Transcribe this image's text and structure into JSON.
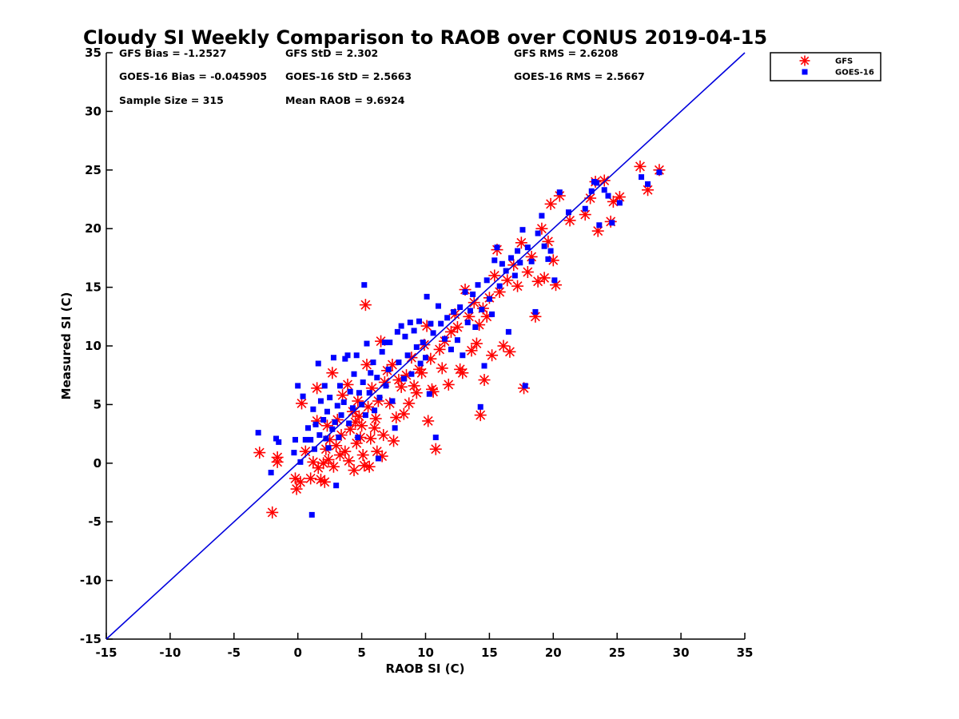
{
  "chart_data": {
    "type": "scatter",
    "title": "Cloudy SI Weekly Comparison to RAOB over CONUS 2019-04-15",
    "xlabel": "RAOB SI (C)",
    "ylabel": "Measured SI (C)",
    "xlim": [
      -15,
      35
    ],
    "ylim": [
      -15,
      35
    ],
    "xticks": [
      "-15",
      "-10",
      "-5",
      "0",
      "5",
      "10",
      "15",
      "20",
      "25",
      "30",
      "35"
    ],
    "yticks": [
      "-15",
      "-10",
      "-5",
      "0",
      "5",
      "10",
      "15",
      "20",
      "25",
      "30",
      "35"
    ],
    "grid": false,
    "legend_position": "outside top-right",
    "stats": [
      {
        "text": "GFS Bias = -1.2527",
        "col": 0,
        "row": 0
      },
      {
        "text": "GFS StD = 2.302",
        "col": 1,
        "row": 0
      },
      {
        "text": "GFS RMS = 2.6208",
        "col": 2,
        "row": 0
      },
      {
        "text": "GOES-16 Bias = -0.045905",
        "col": 0,
        "row": 1
      },
      {
        "text": "GOES-16 StD = 2.5663",
        "col": 1,
        "row": 1
      },
      {
        "text": "GOES-16 RMS = 2.5667",
        "col": 2,
        "row": 1
      },
      {
        "text": "Sample Size = 315",
        "col": 0,
        "row": 2
      },
      {
        "text": "Mean RAOB = 9.6924",
        "col": 1,
        "row": 2
      }
    ],
    "reference_line": {
      "x": [
        -15,
        35
      ],
      "y": [
        -15,
        35
      ],
      "color": "#0000dd"
    },
    "series": [
      {
        "name": "GFS",
        "marker": "asterisk",
        "color": "#ff0000",
        "points": [
          [
            -3.0,
            0.9
          ],
          [
            -2.0,
            -4.2
          ],
          [
            -1.6,
            0.5
          ],
          [
            -1.6,
            0.1
          ],
          [
            -0.2,
            -1.3
          ],
          [
            -0.1,
            -2.2
          ],
          [
            0.2,
            -1.6
          ],
          [
            0.3,
            5.1
          ],
          [
            0.6,
            1.0
          ],
          [
            1.0,
            -1.3
          ],
          [
            1.2,
            0.1
          ],
          [
            1.5,
            3.6
          ],
          [
            1.5,
            6.4
          ],
          [
            1.6,
            -0.4
          ],
          [
            1.8,
            -1.4
          ],
          [
            2.0,
            0.0
          ],
          [
            2.1,
            -1.6
          ],
          [
            2.2,
            1.2
          ],
          [
            2.3,
            3.2
          ],
          [
            2.4,
            0.3
          ],
          [
            2.5,
            2.0
          ],
          [
            2.7,
            7.7
          ],
          [
            2.8,
            -0.3
          ],
          [
            3.0,
            1.5
          ],
          [
            3.1,
            3.7
          ],
          [
            3.3,
            0.7
          ],
          [
            3.4,
            2.4
          ],
          [
            3.5,
            5.8
          ],
          [
            3.7,
            1.0
          ],
          [
            3.9,
            6.7
          ],
          [
            4.0,
            0.2
          ],
          [
            4.1,
            2.9
          ],
          [
            4.3,
            4.4
          ],
          [
            4.4,
            -0.6
          ],
          [
            4.5,
            3.5
          ],
          [
            4.6,
            1.7
          ],
          [
            4.7,
            5.3
          ],
          [
            4.8,
            4.0
          ],
          [
            4.9,
            2.2
          ],
          [
            5.0,
            3.2
          ],
          [
            5.1,
            0.7
          ],
          [
            5.2,
            -0.2
          ],
          [
            5.3,
            13.5
          ],
          [
            5.4,
            8.4
          ],
          [
            5.5,
            4.8
          ],
          [
            5.6,
            -0.3
          ],
          [
            5.7,
            2.1
          ],
          [
            5.8,
            6.4
          ],
          [
            6.0,
            3.0
          ],
          [
            6.1,
            3.8
          ],
          [
            6.2,
            1.0
          ],
          [
            6.3,
            5.3
          ],
          [
            6.5,
            10.4
          ],
          [
            6.6,
            0.6
          ],
          [
            6.7,
            2.4
          ],
          [
            6.8,
            6.9
          ],
          [
            7.0,
            7.9
          ],
          [
            7.2,
            5.1
          ],
          [
            7.4,
            8.4
          ],
          [
            7.5,
            1.9
          ],
          [
            7.7,
            3.9
          ],
          [
            7.9,
            7.1
          ],
          [
            8.1,
            6.5
          ],
          [
            8.3,
            4.2
          ],
          [
            8.5,
            7.5
          ],
          [
            8.7,
            5.1
          ],
          [
            8.9,
            9.0
          ],
          [
            9.1,
            6.6
          ],
          [
            9.3,
            6.0
          ],
          [
            9.5,
            8.0
          ],
          [
            9.7,
            7.7
          ],
          [
            9.9,
            10.1
          ],
          [
            10.1,
            11.7
          ],
          [
            10.2,
            3.6
          ],
          [
            10.4,
            8.9
          ],
          [
            10.5,
            6.3
          ],
          [
            10.6,
            6.1
          ],
          [
            10.8,
            1.2
          ],
          [
            11.1,
            9.7
          ],
          [
            11.3,
            8.1
          ],
          [
            11.5,
            10.4
          ],
          [
            11.8,
            6.7
          ],
          [
            12.0,
            11.2
          ],
          [
            12.3,
            12.7
          ],
          [
            12.5,
            11.6
          ],
          [
            12.7,
            8.0
          ],
          [
            12.9,
            7.7
          ],
          [
            13.1,
            14.8
          ],
          [
            13.4,
            12.5
          ],
          [
            13.6,
            9.6
          ],
          [
            13.8,
            13.7
          ],
          [
            14.0,
            10.2
          ],
          [
            14.2,
            11.8
          ],
          [
            14.3,
            4.1
          ],
          [
            14.5,
            13.2
          ],
          [
            14.6,
            7.1
          ],
          [
            14.8,
            12.5
          ],
          [
            15.0,
            14.1
          ],
          [
            15.2,
            9.2
          ],
          [
            15.4,
            16.0
          ],
          [
            15.6,
            18.2
          ],
          [
            15.8,
            14.6
          ],
          [
            16.1,
            10.0
          ],
          [
            16.4,
            15.6
          ],
          [
            16.6,
            9.5
          ],
          [
            16.9,
            16.9
          ],
          [
            17.2,
            15.1
          ],
          [
            17.5,
            18.8
          ],
          [
            17.7,
            6.4
          ],
          [
            18.0,
            16.3
          ],
          [
            18.3,
            17.6
          ],
          [
            18.6,
            12.5
          ],
          [
            18.8,
            15.5
          ],
          [
            19.1,
            20.0
          ],
          [
            19.3,
            15.8
          ],
          [
            19.6,
            18.9
          ],
          [
            19.8,
            22.1
          ],
          [
            20.0,
            17.3
          ],
          [
            20.2,
            15.2
          ],
          [
            20.5,
            22.8
          ],
          [
            21.3,
            20.7
          ],
          [
            22.5,
            21.2
          ],
          [
            22.9,
            22.6
          ],
          [
            23.3,
            24.0
          ],
          [
            23.5,
            19.8
          ],
          [
            24.0,
            24.1
          ],
          [
            24.5,
            20.6
          ],
          [
            24.7,
            22.3
          ],
          [
            25.2,
            22.7
          ],
          [
            26.8,
            25.3
          ],
          [
            27.4,
            23.3
          ],
          [
            28.3,
            25.0
          ]
        ]
      },
      {
        "name": "GOES-16",
        "marker": "square",
        "color": "#0000ff",
        "points": [
          [
            -3.1,
            2.6
          ],
          [
            -2.1,
            -0.8
          ],
          [
            -1.7,
            2.1
          ],
          [
            -1.5,
            1.8
          ],
          [
            -0.3,
            0.9
          ],
          [
            -0.2,
            2.0
          ],
          [
            0.0,
            6.6
          ],
          [
            0.2,
            0.1
          ],
          [
            0.4,
            5.7
          ],
          [
            0.6,
            2.0
          ],
          [
            0.8,
            3.0
          ],
          [
            1.0,
            2.0
          ],
          [
            1.1,
            -4.4
          ],
          [
            1.2,
            4.6
          ],
          [
            1.3,
            1.2
          ],
          [
            1.4,
            3.3
          ],
          [
            1.6,
            8.5
          ],
          [
            1.7,
            2.4
          ],
          [
            1.8,
            5.3
          ],
          [
            2.0,
            3.7
          ],
          [
            2.1,
            6.6
          ],
          [
            2.2,
            2.1
          ],
          [
            2.3,
            4.4
          ],
          [
            2.4,
            1.3
          ],
          [
            2.5,
            5.6
          ],
          [
            2.7,
            2.9
          ],
          [
            2.8,
            9.0
          ],
          [
            2.9,
            3.5
          ],
          [
            3.0,
            -1.9
          ],
          [
            3.1,
            4.9
          ],
          [
            3.2,
            2.2
          ],
          [
            3.3,
            6.6
          ],
          [
            3.4,
            4.1
          ],
          [
            3.6,
            5.2
          ],
          [
            3.7,
            8.9
          ],
          [
            3.9,
            9.2
          ],
          [
            4.0,
            3.4
          ],
          [
            4.1,
            6.1
          ],
          [
            4.3,
            4.7
          ],
          [
            4.4,
            7.6
          ],
          [
            4.6,
            9.2
          ],
          [
            4.7,
            2.2
          ],
          [
            4.8,
            6.0
          ],
          [
            5.0,
            5.0
          ],
          [
            5.1,
            6.9
          ],
          [
            5.2,
            15.2
          ],
          [
            5.3,
            4.1
          ],
          [
            5.4,
            10.2
          ],
          [
            5.6,
            6.0
          ],
          [
            5.7,
            7.7
          ],
          [
            5.9,
            8.6
          ],
          [
            6.0,
            4.5
          ],
          [
            6.2,
            7.3
          ],
          [
            6.3,
            0.4
          ],
          [
            6.4,
            5.6
          ],
          [
            6.6,
            9.5
          ],
          [
            6.8,
            10.3
          ],
          [
            6.9,
            6.6
          ],
          [
            7.1,
            8.0
          ],
          [
            7.2,
            10.3
          ],
          [
            7.4,
            5.3
          ],
          [
            7.6,
            3.0
          ],
          [
            7.8,
            11.2
          ],
          [
            7.9,
            8.6
          ],
          [
            8.1,
            11.7
          ],
          [
            8.3,
            7.2
          ],
          [
            8.4,
            10.8
          ],
          [
            8.6,
            9.2
          ],
          [
            8.8,
            12.0
          ],
          [
            8.9,
            7.6
          ],
          [
            9.1,
            11.3
          ],
          [
            9.3,
            9.9
          ],
          [
            9.5,
            12.1
          ],
          [
            9.6,
            8.5
          ],
          [
            9.8,
            10.3
          ],
          [
            10.0,
            9.0
          ],
          [
            10.1,
            14.2
          ],
          [
            10.3,
            5.9
          ],
          [
            10.4,
            11.9
          ],
          [
            10.6,
            11.1
          ],
          [
            10.8,
            2.2
          ],
          [
            11.0,
            13.4
          ],
          [
            11.2,
            11.9
          ],
          [
            11.5,
            10.6
          ],
          [
            11.7,
            12.4
          ],
          [
            12.0,
            9.7
          ],
          [
            12.2,
            12.9
          ],
          [
            12.5,
            10.5
          ],
          [
            12.7,
            13.3
          ],
          [
            12.9,
            9.2
          ],
          [
            13.1,
            14.6
          ],
          [
            13.3,
            12.0
          ],
          [
            13.5,
            13.0
          ],
          [
            13.7,
            14.4
          ],
          [
            13.9,
            11.6
          ],
          [
            14.1,
            15.2
          ],
          [
            14.3,
            4.8
          ],
          [
            14.4,
            13.1
          ],
          [
            14.6,
            8.3
          ],
          [
            14.8,
            15.6
          ],
          [
            15.0,
            14.0
          ],
          [
            15.2,
            12.7
          ],
          [
            15.4,
            17.3
          ],
          [
            15.6,
            18.4
          ],
          [
            15.8,
            15.1
          ],
          [
            16.0,
            17.0
          ],
          [
            16.3,
            16.4
          ],
          [
            16.5,
            11.2
          ],
          [
            16.7,
            17.5
          ],
          [
            17.0,
            16.0
          ],
          [
            17.2,
            18.1
          ],
          [
            17.4,
            17.1
          ],
          [
            17.6,
            19.9
          ],
          [
            17.8,
            6.6
          ],
          [
            18.0,
            18.4
          ],
          [
            18.3,
            17.2
          ],
          [
            18.6,
            12.9
          ],
          [
            18.8,
            19.6
          ],
          [
            19.1,
            21.1
          ],
          [
            19.3,
            18.5
          ],
          [
            19.6,
            17.4
          ],
          [
            19.8,
            18.1
          ],
          [
            20.1,
            15.6
          ],
          [
            20.5,
            23.1
          ],
          [
            21.2,
            21.4
          ],
          [
            22.5,
            21.7
          ],
          [
            23.0,
            23.2
          ],
          [
            23.2,
            24.0
          ],
          [
            23.4,
            23.9
          ],
          [
            23.6,
            20.3
          ],
          [
            24.0,
            23.3
          ],
          [
            24.3,
            22.8
          ],
          [
            24.6,
            20.5
          ],
          [
            25.2,
            22.2
          ],
          [
            26.9,
            24.4
          ],
          [
            27.4,
            23.8
          ],
          [
            28.3,
            24.8
          ]
        ]
      }
    ]
  }
}
